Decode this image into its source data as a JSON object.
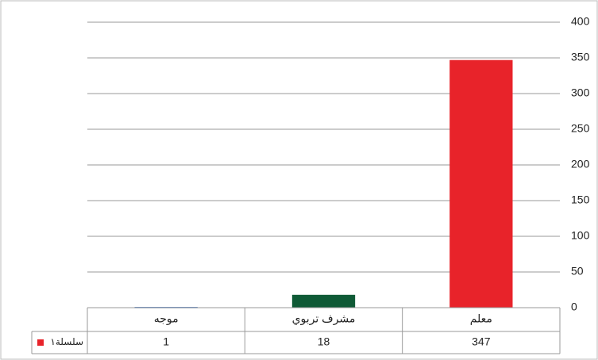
{
  "chart_data": {
    "type": "bar",
    "categories": [
      "موجه",
      "مشرف تربوي",
      "معلم"
    ],
    "series": [
      {
        "name": "سلسلة١",
        "color": "#e8232a",
        "point_colors": [
          "#3a6fc4",
          "#0f5a36",
          "#e8232a"
        ],
        "values": [
          1,
          18,
          347
        ]
      }
    ],
    "ylim": [
      0,
      400
    ],
    "yticks": [
      0,
      50,
      100,
      150,
      200,
      250,
      300,
      350,
      400
    ],
    "grid": true,
    "y_axis_side": "right",
    "data_table": true
  }
}
